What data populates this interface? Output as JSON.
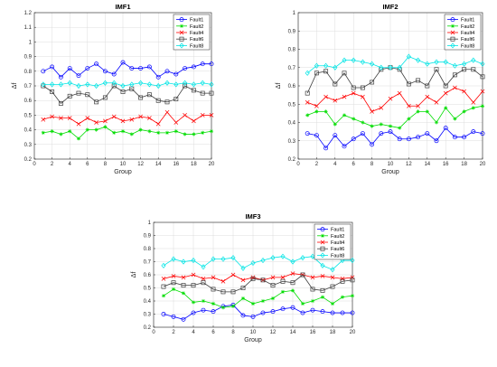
{
  "chart_data": [
    {
      "type": "line",
      "title": "IMF1",
      "xlabel": "Group",
      "ylabel": "Δf",
      "xlim": [
        0,
        20
      ],
      "ylim": [
        0.2,
        1.2
      ],
      "xticks": [
        0,
        2,
        4,
        6,
        8,
        10,
        12,
        14,
        16,
        18,
        20
      ],
      "yticks": [
        0.2,
        0.3,
        0.4,
        0.5,
        0.6,
        0.7,
        0.8,
        0.9,
        1,
        1.1,
        1.2
      ],
      "grid": true,
      "legend_position": "top-right",
      "x": [
        1,
        2,
        3,
        4,
        5,
        6,
        7,
        8,
        9,
        10,
        11,
        12,
        13,
        14,
        15,
        16,
        17,
        18,
        19,
        20
      ],
      "series": [
        {
          "name": "Fault1",
          "color": "#0000ff",
          "marker": "circle",
          "values": [
            0.8,
            0.83,
            0.76,
            0.82,
            0.77,
            0.82,
            0.85,
            0.8,
            0.78,
            0.86,
            0.82,
            0.82,
            0.83,
            0.76,
            0.8,
            0.78,
            0.82,
            0.83,
            0.85,
            0.85
          ]
        },
        {
          "name": "Fault2",
          "color": "#00dd00",
          "marker": "star",
          "values": [
            0.38,
            0.39,
            0.37,
            0.39,
            0.34,
            0.4,
            0.4,
            0.42,
            0.38,
            0.39,
            0.37,
            0.4,
            0.39,
            0.38,
            0.38,
            0.39,
            0.37,
            0.37,
            0.38,
            0.39
          ]
        },
        {
          "name": "Fault4",
          "color": "#ff0000",
          "marker": "x",
          "values": [
            0.47,
            0.49,
            0.48,
            0.48,
            0.44,
            0.48,
            0.45,
            0.46,
            0.49,
            0.46,
            0.47,
            0.49,
            0.48,
            0.44,
            0.52,
            0.45,
            0.5,
            0.46,
            0.5,
            0.5
          ]
        },
        {
          "name": "Fault6",
          "color": "#404040",
          "marker": "square",
          "values": [
            0.7,
            0.66,
            0.58,
            0.63,
            0.65,
            0.64,
            0.59,
            0.62,
            0.7,
            0.66,
            0.68,
            0.62,
            0.64,
            0.6,
            0.59,
            0.61,
            0.7,
            0.67,
            0.65,
            0.65
          ]
        },
        {
          "name": "Fault8",
          "color": "#00e5e5",
          "marker": "diamond",
          "values": [
            0.71,
            0.71,
            0.71,
            0.72,
            0.7,
            0.71,
            0.7,
            0.72,
            0.72,
            0.7,
            0.71,
            0.72,
            0.71,
            0.7,
            0.72,
            0.71,
            0.72,
            0.71,
            0.72,
            0.71
          ]
        }
      ]
    },
    {
      "type": "line",
      "title": "IMF2",
      "xlabel": "Group",
      "ylabel": "Δf",
      "xlim": [
        0,
        20
      ],
      "ylim": [
        0.2,
        1
      ],
      "xticks": [
        0,
        2,
        4,
        6,
        8,
        10,
        12,
        14,
        16,
        18,
        20
      ],
      "yticks": [
        0.2,
        0.3,
        0.4,
        0.5,
        0.6,
        0.7,
        0.8,
        0.9,
        1
      ],
      "grid": true,
      "legend_position": "top-right",
      "x": [
        1,
        2,
        3,
        4,
        5,
        6,
        7,
        8,
        9,
        10,
        11,
        12,
        13,
        14,
        15,
        16,
        17,
        18,
        19,
        20
      ],
      "series": [
        {
          "name": "Fault1",
          "color": "#0000ff",
          "marker": "circle",
          "values": [
            0.34,
            0.33,
            0.26,
            0.33,
            0.27,
            0.31,
            0.34,
            0.28,
            0.34,
            0.35,
            0.31,
            0.31,
            0.32,
            0.34,
            0.3,
            0.37,
            0.32,
            0.32,
            0.35,
            0.34
          ]
        },
        {
          "name": "Fault2",
          "color": "#00dd00",
          "marker": "star",
          "values": [
            0.44,
            0.46,
            0.46,
            0.39,
            0.44,
            0.42,
            0.4,
            0.38,
            0.39,
            0.38,
            0.37,
            0.42,
            0.46,
            0.46,
            0.4,
            0.48,
            0.42,
            0.46,
            0.48,
            0.49
          ]
        },
        {
          "name": "Fault4",
          "color": "#ff0000",
          "marker": "x",
          "values": [
            0.51,
            0.49,
            0.54,
            0.52,
            0.54,
            0.56,
            0.54,
            0.46,
            0.48,
            0.53,
            0.56,
            0.49,
            0.49,
            0.54,
            0.51,
            0.56,
            0.59,
            0.57,
            0.51,
            0.57
          ]
        },
        {
          "name": "Fault6",
          "color": "#404040",
          "marker": "square",
          "values": [
            0.56,
            0.67,
            0.68,
            0.61,
            0.67,
            0.59,
            0.59,
            0.62,
            0.69,
            0.7,
            0.69,
            0.61,
            0.63,
            0.6,
            0.69,
            0.6,
            0.66,
            0.69,
            0.69,
            0.65
          ]
        },
        {
          "name": "Fault8",
          "color": "#00e5e5",
          "marker": "diamond",
          "values": [
            0.67,
            0.71,
            0.71,
            0.7,
            0.74,
            0.74,
            0.73,
            0.72,
            0.7,
            0.7,
            0.7,
            0.76,
            0.74,
            0.72,
            0.73,
            0.73,
            0.71,
            0.72,
            0.74,
            0.72
          ]
        }
      ]
    },
    {
      "type": "line",
      "title": "IMF3",
      "xlabel": "Group",
      "ylabel": "Δf",
      "xlim": [
        0,
        20
      ],
      "ylim": [
        0.2,
        1
      ],
      "xticks": [
        0,
        2,
        4,
        6,
        8,
        10,
        12,
        14,
        16,
        18,
        20
      ],
      "yticks": [
        0.2,
        0.3,
        0.4,
        0.5,
        0.6,
        0.7,
        0.8,
        0.9,
        1
      ],
      "grid": true,
      "legend_position": "top-right",
      "x": [
        1,
        2,
        3,
        4,
        5,
        6,
        7,
        8,
        9,
        10,
        11,
        12,
        13,
        14,
        15,
        16,
        17,
        18,
        19,
        20
      ],
      "series": [
        {
          "name": "Fault1",
          "color": "#0000ff",
          "marker": "circle",
          "values": [
            0.3,
            0.28,
            0.26,
            0.31,
            0.33,
            0.32,
            0.36,
            0.37,
            0.29,
            0.28,
            0.31,
            0.32,
            0.34,
            0.35,
            0.31,
            0.33,
            0.32,
            0.31,
            0.31,
            0.31
          ]
        },
        {
          "name": "Fault2",
          "color": "#00dd00",
          "marker": "star",
          "values": [
            0.44,
            0.49,
            0.46,
            0.39,
            0.4,
            0.38,
            0.35,
            0.36,
            0.42,
            0.38,
            0.4,
            0.42,
            0.47,
            0.48,
            0.38,
            0.4,
            0.43,
            0.38,
            0.43,
            0.44
          ]
        },
        {
          "name": "Fault4",
          "color": "#ff0000",
          "marker": "x",
          "values": [
            0.57,
            0.59,
            0.58,
            0.6,
            0.57,
            0.58,
            0.55,
            0.6,
            0.56,
            0.58,
            0.56,
            0.58,
            0.58,
            0.61,
            0.6,
            0.58,
            0.59,
            0.58,
            0.57,
            0.58
          ]
        },
        {
          "name": "Fault6",
          "color": "#404040",
          "marker": "square",
          "values": [
            0.51,
            0.54,
            0.52,
            0.52,
            0.54,
            0.49,
            0.47,
            0.47,
            0.5,
            0.57,
            0.56,
            0.52,
            0.55,
            0.54,
            0.6,
            0.49,
            0.48,
            0.51,
            0.55,
            0.56
          ]
        },
        {
          "name": "Fault8",
          "color": "#00e5e5",
          "marker": "diamond",
          "values": [
            0.67,
            0.72,
            0.7,
            0.71,
            0.66,
            0.72,
            0.72,
            0.73,
            0.65,
            0.69,
            0.71,
            0.73,
            0.74,
            0.7,
            0.73,
            0.74,
            0.67,
            0.64,
            0.71,
            0.71
          ]
        }
      ]
    }
  ]
}
